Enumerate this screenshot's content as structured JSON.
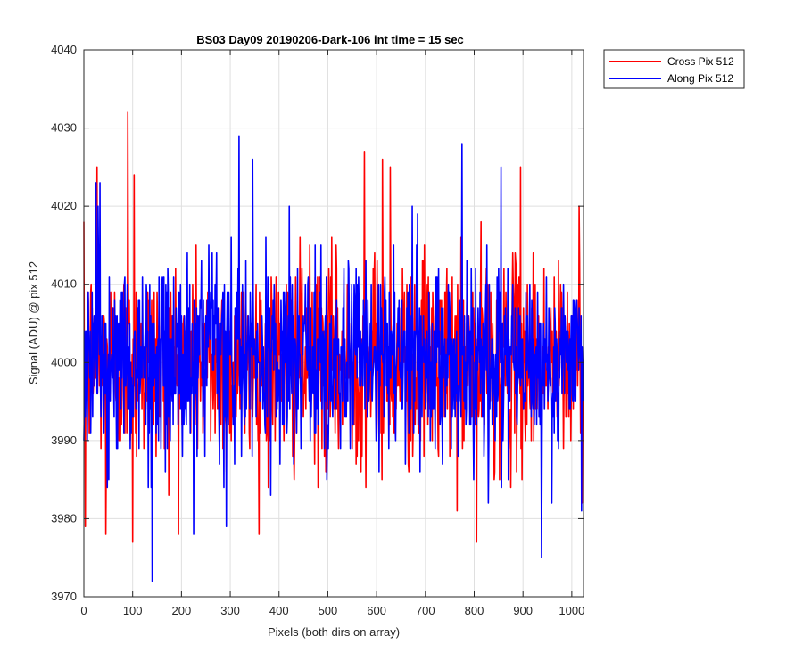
{
  "chart_data": {
    "type": "line",
    "title": "BS03 Day09 20190206-Dark-106 int time = 15 sec",
    "xlabel": "Pixels (both dirs on array)",
    "ylabel": "Signal (ADU) @ pix 512",
    "xlim": [
      0,
      1024
    ],
    "ylim": [
      3970,
      4040
    ],
    "xticks": [
      0,
      100,
      200,
      300,
      400,
      500,
      600,
      700,
      800,
      900,
      1000
    ],
    "yticks": [
      3970,
      3980,
      3990,
      4000,
      4010,
      4020,
      4030,
      4040
    ],
    "grid": true,
    "legend_position": "outside-top-right",
    "sample_count": 1024,
    "series": [
      {
        "name": "Cross Pix 512",
        "color": "#ff0000",
        "mean": 4000,
        "min": 3977,
        "max": 4032,
        "notable_points": [
          {
            "x": 3,
            "y": 3979
          },
          {
            "x": 27,
            "y": 4025
          },
          {
            "x": 45,
            "y": 3978
          },
          {
            "x": 90,
            "y": 4032
          },
          {
            "x": 100,
            "y": 3977
          },
          {
            "x": 103,
            "y": 4024
          },
          {
            "x": 575,
            "y": 4027
          },
          {
            "x": 612,
            "y": 4026
          },
          {
            "x": 628,
            "y": 4025
          },
          {
            "x": 805,
            "y": 3977
          },
          {
            "x": 895,
            "y": 4025
          },
          {
            "x": 1015,
            "y": 4020
          }
        ]
      },
      {
        "name": "Along Pix 512",
        "color": "#0000ff",
        "mean": 4000,
        "min": 3972,
        "max": 4029,
        "notable_points": [
          {
            "x": 25,
            "y": 4023
          },
          {
            "x": 29,
            "y": 4020
          },
          {
            "x": 140,
            "y": 3972
          },
          {
            "x": 225,
            "y": 3978
          },
          {
            "x": 318,
            "y": 4029
          },
          {
            "x": 775,
            "y": 4028
          },
          {
            "x": 855,
            "y": 4025
          },
          {
            "x": 938,
            "y": 3975
          },
          {
            "x": 1020,
            "y": 3981
          }
        ]
      }
    ]
  }
}
